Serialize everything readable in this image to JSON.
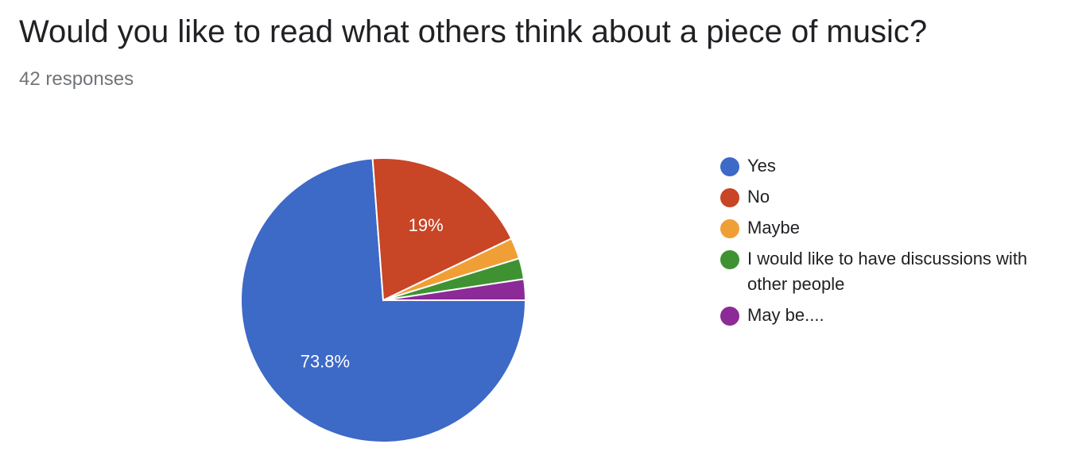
{
  "title": "Would you like to read what others think about a piece of music?",
  "subtitle": "42 responses",
  "chart_data": {
    "type": "pie",
    "title": "Would you like to read what others think about a piece of music?",
    "slices": [
      {
        "label": "Yes",
        "value": 31,
        "percent_label": "73.8%",
        "color": "#3d69c7"
      },
      {
        "label": "No",
        "value": 8,
        "percent_label": "19%",
        "color": "#c84526"
      },
      {
        "label": "Maybe",
        "value": 1,
        "percent_label": "",
        "color": "#f09f36"
      },
      {
        "label": "I would like to have discussions with other people",
        "value": 1,
        "percent_label": "",
        "color": "#3e9232"
      },
      {
        "label": "May be....",
        "value": 1,
        "percent_label": "",
        "color": "#8c2a98"
      }
    ],
    "legend_position": "right"
  }
}
